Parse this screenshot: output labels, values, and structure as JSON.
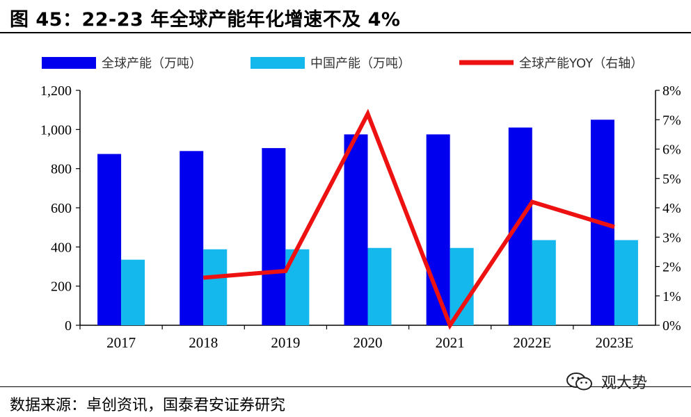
{
  "header": {
    "title": "图 45：22-23 年全球产能年化增速不及 4%"
  },
  "footer": {
    "source": "数据来源：卓创资讯，国泰君安证券研究",
    "watermark_text": "观大势"
  },
  "chart_data": {
    "type": "bar",
    "categories": [
      "2017",
      "2018",
      "2019",
      "2020",
      "2021",
      "2022E",
      "2023E"
    ],
    "series": [
      {
        "name": "全球产能（万吨）",
        "type": "bar",
        "axis": "left",
        "color": "#0000ee",
        "values": [
          875,
          890,
          905,
          975,
          975,
          1010,
          1050
        ]
      },
      {
        "name": "中国产能（万吨）",
        "type": "bar",
        "axis": "left",
        "color": "#15b8ec",
        "values": [
          335,
          388,
          388,
          395,
          395,
          435,
          435
        ]
      },
      {
        "name": "全球产能YOY（右轴）",
        "type": "line",
        "axis": "right",
        "color": "#ee1111",
        "values": [
          null,
          0.0162,
          0.0185,
          0.072,
          0.0,
          0.042,
          0.0335
        ]
      }
    ],
    "y_left": {
      "min": 0,
      "max": 1200,
      "step": 200,
      "ticks": [
        "0",
        "200",
        "400",
        "600",
        "800",
        "1,000",
        "1,200"
      ]
    },
    "y_right": {
      "min": 0,
      "max": 0.08,
      "step": 0.01,
      "ticks": [
        "0%",
        "1%",
        "2%",
        "3%",
        "4%",
        "5%",
        "6%",
        "7%",
        "8%"
      ]
    },
    "legend_position": "top",
    "grid": false
  }
}
